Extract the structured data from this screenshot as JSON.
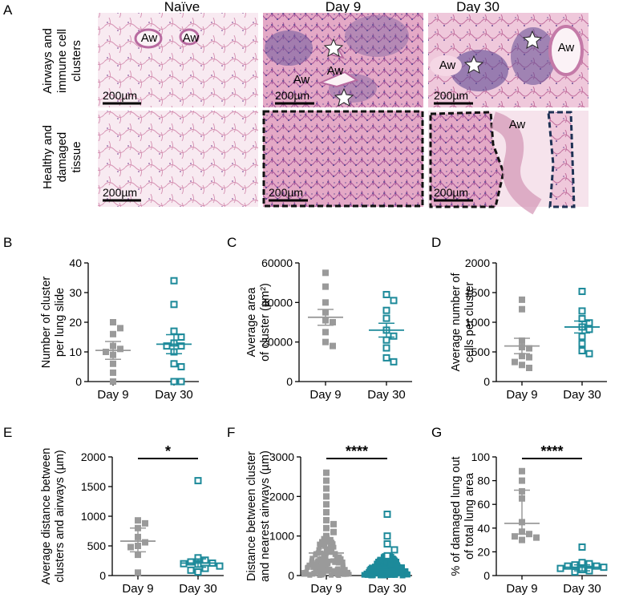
{
  "figure": {
    "panelA": {
      "letter": "A",
      "columns": [
        "Naïve",
        "Day 9",
        "Day 30"
      ],
      "rows": [
        [
          "Airways and",
          "immune cell",
          "clusters"
        ],
        [
          "Healthy and",
          "damaged",
          "tissue"
        ]
      ],
      "scale_bar": "200µm",
      "airway_label": "Aw",
      "colors": {
        "tissue": "#d98fb4",
        "background": "#f7e7ef",
        "cluster": "#6d5a9c",
        "dash_black": "#111111",
        "dash_navy": "#1f3255"
      }
    },
    "colors": {
      "day9": "#9a9a9a",
      "day30": "#1d8a9a"
    }
  },
  "chart_data": [
    {
      "panel": "B",
      "type": "scatter",
      "categories": [
        "Day 9",
        "Day 30"
      ],
      "ylabel": [
        "Number of cluster",
        "per lung slide"
      ],
      "ylim": [
        0,
        40
      ],
      "yticks": [
        "0",
        "10",
        "20",
        "30",
        "40"
      ],
      "series": [
        {
          "values": [
            20,
            18,
            16,
            12,
            11,
            10,
            9,
            6,
            3,
            0
          ],
          "mean": 10.5,
          "err": [
            7.5,
            13.5
          ]
        },
        {
          "values": [
            34,
            26,
            17,
            15,
            13,
            12,
            12,
            10,
            6,
            5,
            0,
            0
          ],
          "mean": 12.6,
          "err": [
            9.4,
            15.8
          ]
        }
      ]
    },
    {
      "panel": "C",
      "type": "scatter",
      "categories": [
        "Day 9",
        "Day 30"
      ],
      "ylabel": [
        "Average area",
        "of cluster (µm²)"
      ],
      "ylim": [
        0,
        60000
      ],
      "yticks": [
        "0",
        "20000",
        "40000",
        "60000"
      ],
      "series": [
        {
          "values": [
            55000,
            48000,
            40000,
            35000,
            31000,
            30000,
            25000,
            20000,
            18000
          ],
          "mean": 32500,
          "err": [
            28500,
            36500
          ]
        },
        {
          "values": [
            44000,
            41000,
            36000,
            32000,
            26000,
            23000,
            21000,
            17000,
            12000,
            10000
          ],
          "mean": 26000,
          "err": [
            22500,
            29500
          ]
        }
      ]
    },
    {
      "panel": "D",
      "type": "scatter",
      "categories": [
        "Day 9",
        "Day 30"
      ],
      "ylabel": [
        "Average number of",
        "cells per cluster"
      ],
      "ylim": [
        0,
        2000
      ],
      "yticks": [
        "0",
        "500",
        "1000",
        "1500",
        "2000"
      ],
      "series": [
        {
          "values": [
            1380,
            1220,
            690,
            580,
            560,
            430,
            410,
            330,
            280,
            230
          ],
          "mean": 600,
          "err": [
            470,
            730
          ]
        },
        {
          "values": [
            1520,
            1190,
            1060,
            990,
            920,
            880,
            760,
            640,
            520,
            470
          ],
          "mean": 920,
          "err": [
            820,
            1020
          ]
        }
      ]
    },
    {
      "panel": "E",
      "type": "scatter",
      "categories": [
        "Day 9",
        "Day 30"
      ],
      "ylabel": [
        "Average distance between",
        "clusters and airways (µm)"
      ],
      "ylim": [
        0,
        2000
      ],
      "yticks": [
        "0",
        "500",
        "1000",
        "1500",
        "2000"
      ],
      "significance": "*",
      "series": [
        {
          "values": [
            930,
            880,
            800,
            650,
            560,
            500,
            480,
            350,
            50
          ],
          "mean": 580,
          "err": [
            400,
            800
          ]
        },
        {
          "values": [
            1600,
            300,
            260,
            230,
            210,
            200,
            190,
            160,
            120,
            90,
            60
          ],
          "mean": 210,
          "err": [
            140,
            280
          ]
        }
      ]
    },
    {
      "panel": "F",
      "type": "scatter",
      "categories": [
        "Day 9",
        "Day 30"
      ],
      "ylabel": [
        "Distance between cluster",
        "and nearest airways (µm)"
      ],
      "ylim": [
        0,
        3000
      ],
      "yticks": [
        "0",
        "1000",
        "2000",
        "3000"
      ],
      "significance": "****",
      "series": [
        {
          "values": [
            2600,
            2400,
            2200,
            2000,
            1800,
            1600,
            1400,
            1300,
            1200,
            1100,
            1000
          ],
          "mean": 570,
          "err": [
            540,
            600
          ],
          "dense_range": [
            0,
            1000
          ]
        },
        {
          "values": [
            1550,
            1000,
            800,
            650,
            500
          ],
          "mean": 130,
          "err": [
            110,
            150
          ],
          "dense_range": [
            0,
            500
          ]
        }
      ]
    },
    {
      "panel": "G",
      "type": "scatter",
      "categories": [
        "Day 9",
        "Day 30"
      ],
      "ylabel": [
        "% of damaged lung out",
        "of total lung area"
      ],
      "ylim": [
        0,
        100
      ],
      "yticks": [
        "0",
        "20",
        "40",
        "60",
        "80",
        "100"
      ],
      "significance": "****",
      "series": [
        {
          "values": [
            88,
            80,
            71,
            65,
            45,
            37,
            35,
            33,
            32,
            30
          ],
          "median": 44,
          "err": [
            35,
            72
          ]
        },
        {
          "values": [
            24,
            11,
            10,
            9,
            8,
            8,
            7,
            6,
            5,
            4,
            3
          ],
          "median": 7,
          "err": [
            4,
            9
          ]
        }
      ]
    }
  ]
}
